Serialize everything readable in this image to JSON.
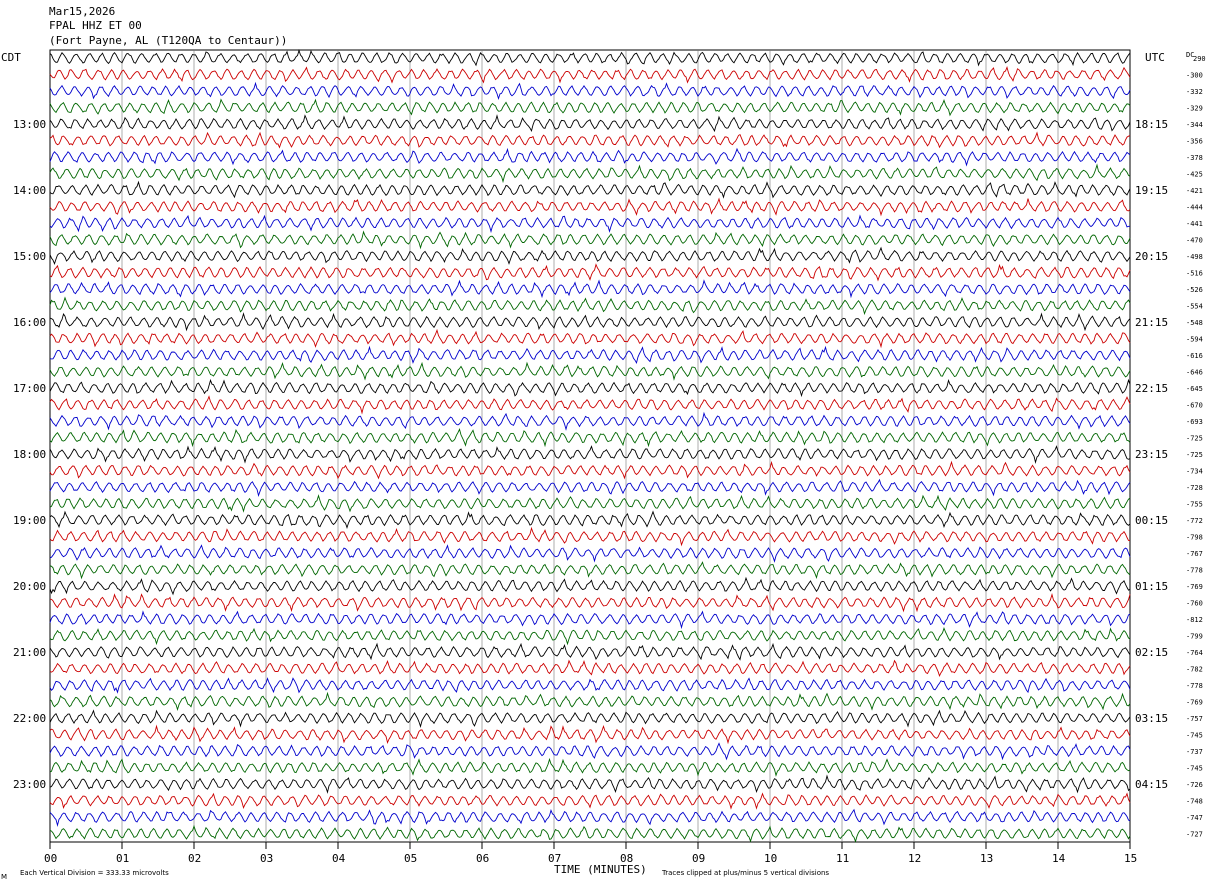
{
  "header": {
    "date": "Mar15,2026",
    "station": "FPAL HHZ ET 00",
    "location": "(Fort Payne, AL (T120QA to Centaur))"
  },
  "labels": {
    "left_zone": "CDT",
    "right_zone": "UTC",
    "dc_header": "DC",
    "footer_left": "Each Vertical Division =  333.33 microvolts",
    "footer_right": "Traces clipped at plus/minus 5 vertical divisions",
    "corner_mark": "M"
  },
  "chart_data": {
    "type": "line",
    "subtype": "helicorder",
    "xlabel": "TIME (MINUTES)",
    "x_ticks": [
      "00",
      "01",
      "02",
      "03",
      "04",
      "05",
      "06",
      "07",
      "08",
      "09",
      "10",
      "11",
      "12",
      "13",
      "14",
      "15"
    ],
    "xlim": [
      0,
      15
    ],
    "grid": "vertical lines at each minute",
    "trace_colors": [
      "#000000",
      "#cc0000",
      "#0000cc",
      "#006600"
    ],
    "left_hour_labels": [
      "13:00",
      "14:00",
      "15:00",
      "16:00",
      "17:00",
      "18:00",
      "19:00",
      "20:00",
      "21:00",
      "22:00",
      "23:00"
    ],
    "right_hour_labels": [
      "18:15",
      "19:15",
      "20:15",
      "21:15",
      "22:15",
      "23:15",
      "00:15",
      "01:15",
      "02:15",
      "03:15",
      "04:15"
    ],
    "first_labeled_row": 4,
    "row_count": 48,
    "dc_offsets": [
      "290",
      "-300",
      "-332",
      "-329",
      "-344",
      "-356",
      "-378",
      "-425",
      "-421",
      "-444",
      "-441",
      "-470",
      "-498",
      "-516",
      "-526",
      "-554",
      "-548",
      "-594",
      "-616",
      "-646",
      "-645",
      "-670",
      "-693",
      "-725",
      "-725",
      "-734",
      "-728",
      "-755",
      "-772",
      "-798",
      "-767",
      "-778",
      "-769",
      "-760",
      "-812",
      "-799",
      "-764",
      "-782",
      "-778",
      "-769",
      "-757",
      "-745",
      "-737",
      "-745",
      "-726",
      "-748",
      "-747",
      "-727"
    ]
  }
}
